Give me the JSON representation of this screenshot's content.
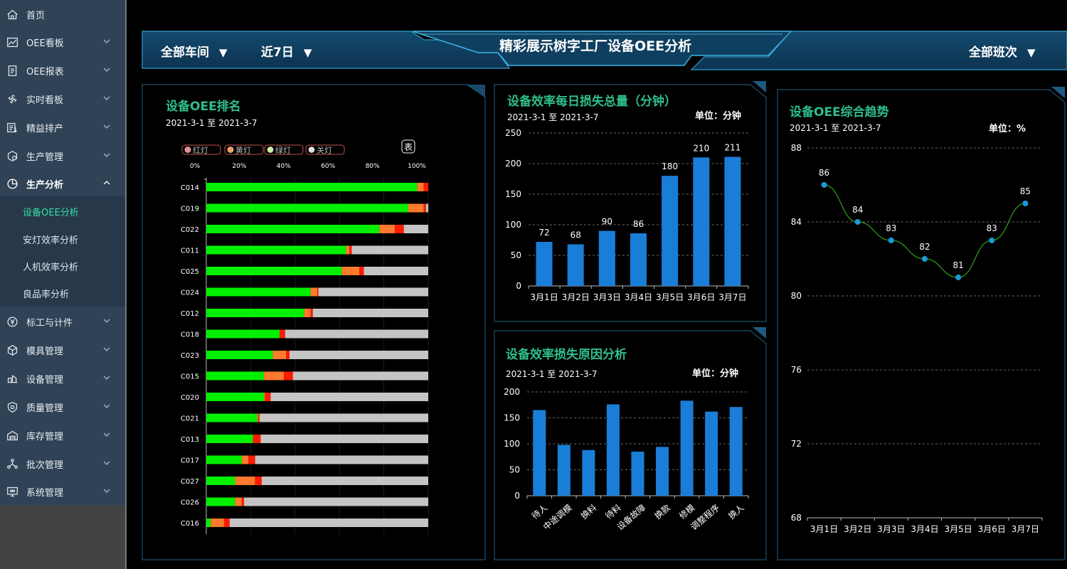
{
  "sidebar": {
    "items": [
      {
        "label": "首页",
        "icon": "home-icon"
      },
      {
        "label": "OEE看板",
        "icon": "line-chart-icon"
      },
      {
        "label": "OEE报表",
        "icon": "report-icon"
      },
      {
        "label": "实时看板",
        "icon": "fan-icon"
      },
      {
        "label": "精益排产",
        "icon": "schedule-icon"
      },
      {
        "label": "生产管理",
        "icon": "production-icon"
      },
      {
        "label": "生产分析",
        "icon": "pie-chart-icon"
      },
      {
        "label": "标工与计件",
        "icon": "yen-icon"
      },
      {
        "label": "模具管理",
        "icon": "cube-icon"
      },
      {
        "label": "设备管理",
        "icon": "equipment-icon"
      },
      {
        "label": "质量管理",
        "icon": "quality-icon"
      },
      {
        "label": "库存管理",
        "icon": "warehouse-icon"
      },
      {
        "label": "批次管理",
        "icon": "network-icon"
      },
      {
        "label": "系统管理",
        "icon": "monitor-icon"
      }
    ],
    "subitems": [
      {
        "label": "设备OEE分析",
        "active": true
      },
      {
        "label": "安灯效率分析",
        "active": false
      },
      {
        "label": "人机效率分析",
        "active": false
      },
      {
        "label": "良品率分析",
        "active": false
      }
    ]
  },
  "header": {
    "workshop": "全部车间",
    "period": "近7日",
    "title": "精彩展示树字工厂设备OEE分析",
    "shift": "全部班次",
    "caret": "▼"
  },
  "colors": {
    "accent": "#2fbf8a",
    "bar_blue": "#1a7ed8",
    "green": "#00f000",
    "orange": "#ff7a2e",
    "red": "#ff1a00",
    "gray": "#c4c4c4",
    "point": "#1a9ad8",
    "trend_line": "#2a9a1a"
  },
  "panel_ranking": {
    "title": "设备OEE排名",
    "date": "2021-3-1 至 2021-3-7",
    "legend": [
      "红灯",
      "黄灯",
      "绿灯",
      "关灯"
    ],
    "table_button": "表",
    "ticks": [
      "0%",
      "20%",
      "40%",
      "60%",
      "80%",
      "100%"
    ]
  },
  "panel_daily": {
    "title": "设备效率每日损失总量（分钟）",
    "date": "2021-3-1 至 2021-3-7",
    "unit": "单位：分钟"
  },
  "panel_reason": {
    "title": "设备效率损失原因分析",
    "date": "2021-3-1 至 2021-3-7",
    "unit": "单位：分钟"
  },
  "panel_trend": {
    "title": "设备OEE综合趋势",
    "date": "2021-3-1 至 2021-3-7",
    "unit": "单位：%"
  },
  "chart_data": [
    {
      "type": "bar",
      "title": "设备OEE排名",
      "orientation": "horizontal",
      "stacked": true,
      "x_ticks": [
        "0%",
        "20%",
        "40%",
        "60%",
        "80%",
        "100%"
      ],
      "xlim": [
        0,
        100
      ],
      "categories": [
        "C014",
        "C019",
        "C022",
        "C011",
        "C025",
        "C024",
        "C012",
        "C018",
        "C023",
        "C015",
        "C020",
        "C021",
        "C013",
        "C017",
        "C027",
        "C026",
        "C016"
      ],
      "series": [
        {
          "name": "绿灯",
          "values": [
            95,
            91,
            78,
            63,
            61,
            47,
            44,
            33,
            30,
            26,
            26,
            23,
            21,
            16,
            13,
            13,
            2
          ]
        },
        {
          "name": "黄灯",
          "values": [
            3,
            7,
            7,
            1.5,
            8,
            3,
            3,
            0,
            6,
            9,
            0.5,
            0.5,
            0,
            3,
            9,
            3,
            6
          ]
        },
        {
          "name": "红灯",
          "values": [
            2,
            1,
            4,
            1,
            2,
            0.5,
            1,
            2.5,
            1.5,
            4,
            2.5,
            0.5,
            3.5,
            3,
            3,
            1,
            2.5
          ]
        },
        {
          "name": "关灯",
          "values": [
            0,
            1,
            11,
            34.5,
            29,
            49.5,
            52,
            64.5,
            62.5,
            61,
            71,
            76,
            75.5,
            78,
            75,
            83,
            89.5
          ]
        }
      ],
      "legend_position": "top-left",
      "grid": true
    },
    {
      "type": "bar",
      "title": "设备效率每日损失总量（分钟）",
      "categories": [
        "3月1日",
        "3月2日",
        "3月3日",
        "3月4日",
        "3月5日",
        "3月6日",
        "3月7日"
      ],
      "values": [
        72,
        68,
        90,
        86,
        180,
        210,
        211
      ],
      "y_ticks": [
        0,
        50,
        100,
        150,
        200,
        250
      ],
      "ylim": [
        0,
        250
      ],
      "grid": true
    },
    {
      "type": "bar",
      "title": "设备效率损失原因分析",
      "categories": [
        "待人",
        "中途调模",
        "换料",
        "待料",
        "设备故障",
        "换款",
        "修模",
        "调整程序",
        "换人"
      ],
      "values": [
        165,
        98,
        88,
        176,
        85,
        94,
        183,
        162,
        171
      ],
      "y_ticks": [
        0,
        50,
        100,
        150,
        200
      ],
      "ylim": [
        0,
        200
      ],
      "grid": true
    },
    {
      "type": "line",
      "title": "设备OEE综合趋势",
      "categories": [
        "3月1日",
        "3月2日",
        "3月3日",
        "3月4日",
        "3月5日",
        "3月6日",
        "3月7日"
      ],
      "values": [
        86,
        84,
        83,
        82,
        81,
        83,
        85
      ],
      "y_ticks": [
        68,
        72,
        76,
        80,
        84,
        88
      ],
      "ylim": [
        68,
        88
      ],
      "grid": true
    }
  ]
}
